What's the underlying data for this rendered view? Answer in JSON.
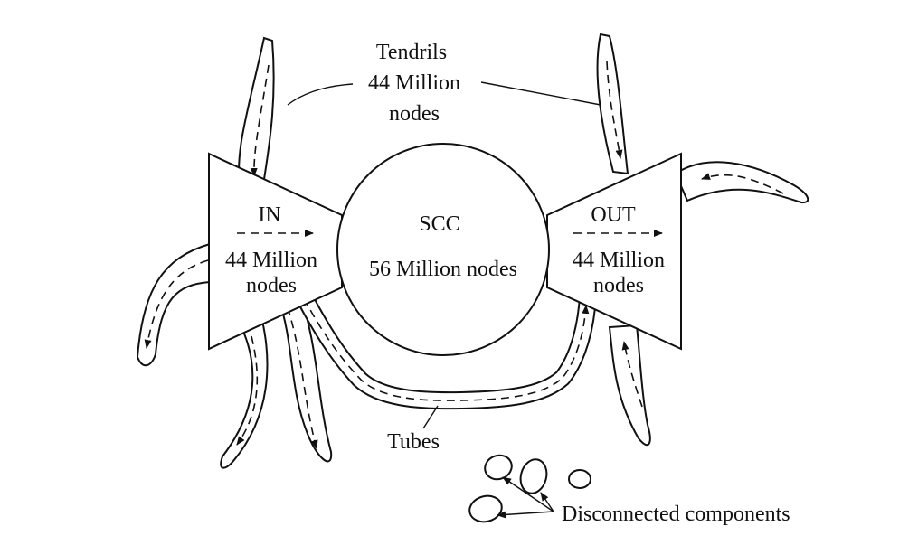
{
  "diagram": {
    "tendrils": {
      "title": "Tendrils",
      "count": "44 Million",
      "unit": "nodes"
    },
    "in_component": {
      "title": "IN",
      "count": "44 Million",
      "unit": "nodes"
    },
    "scc": {
      "title": "SCC",
      "count": "56 Million nodes"
    },
    "out_component": {
      "title": "OUT",
      "count": "44 Million",
      "unit": "nodes"
    },
    "tubes": {
      "label": "Tubes"
    },
    "disconnected": {
      "label": "Disconnected components"
    }
  }
}
